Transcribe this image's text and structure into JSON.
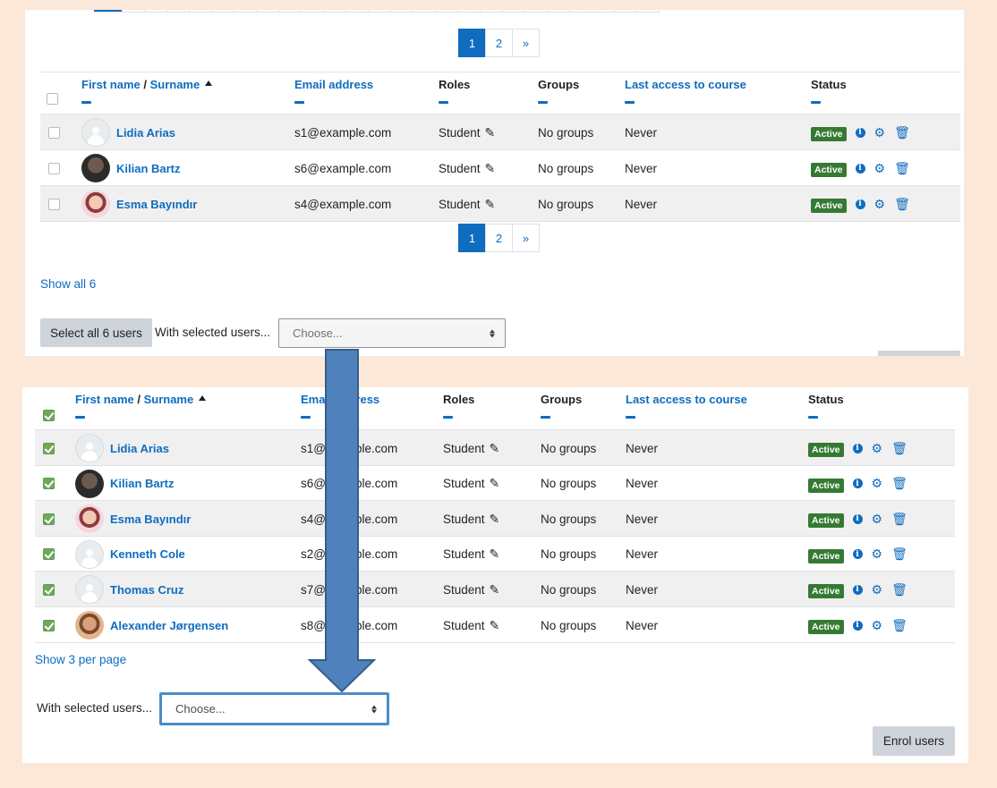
{
  "pagination": {
    "pages": [
      "1",
      "2"
    ],
    "next": "»",
    "current": "1"
  },
  "columns": {
    "first_name": "First name",
    "separator": " / ",
    "surname": "Surname",
    "email": "Email address",
    "roles": "Roles",
    "groups": "Groups",
    "last_access": "Last access to course",
    "status": "Status"
  },
  "top_panel": {
    "users": [
      {
        "name": "Lidia Arias",
        "email": "s1@example.com",
        "role": "Student",
        "groups": "No groups",
        "last_access": "Never",
        "status": "Active",
        "avatar": "default"
      },
      {
        "name": "Kilian Bartz",
        "email": "s6@example.com",
        "role": "Student",
        "groups": "No groups",
        "last_access": "Never",
        "status": "Active",
        "avatar": "dark"
      },
      {
        "name": "Esma Bayındır",
        "email": "s4@example.com",
        "role": "Student",
        "groups": "No groups",
        "last_access": "Never",
        "status": "Active",
        "avatar": "pink"
      }
    ],
    "show_all_link": "Show all 6",
    "select_all_button": "Select all 6 users",
    "with_selected_label": "With selected users...",
    "choose_placeholder": "Choose..."
  },
  "bottom_panel": {
    "users": [
      {
        "name": "Lidia Arias",
        "email": "s1@example.com",
        "role": "Student",
        "groups": "No groups",
        "last_access": "Never",
        "status": "Active",
        "avatar": "default"
      },
      {
        "name": "Kilian Bartz",
        "email": "s6@example.com",
        "role": "Student",
        "groups": "No groups",
        "last_access": "Never",
        "status": "Active",
        "avatar": "dark"
      },
      {
        "name": "Esma Bayındır",
        "email": "s4@example.com",
        "role": "Student",
        "groups": "No groups",
        "last_access": "Never",
        "status": "Active",
        "avatar": "pink"
      },
      {
        "name": "Kenneth Cole",
        "email": "s2@example.com",
        "role": "Student",
        "groups": "No groups",
        "last_access": "Never",
        "status": "Active",
        "avatar": "default"
      },
      {
        "name": "Thomas Cruz",
        "email": "s7@example.com",
        "role": "Student",
        "groups": "No groups",
        "last_access": "Never",
        "status": "Active",
        "avatar": "default"
      },
      {
        "name": "Alexander Jørgensen",
        "email": "s8@example.com",
        "role": "Student",
        "groups": "No groups",
        "last_access": "Never",
        "status": "Active",
        "avatar": "beard"
      }
    ],
    "show_per_page_link": "Show 3 per page",
    "with_selected_label": "With selected users...",
    "choose_placeholder": "Choose...",
    "enrol_button": "Enrol users"
  },
  "colors": {
    "link": "#0f6cbf",
    "active_badge": "#357a32",
    "arrow_fill": "#4f81bd",
    "arrow_stroke": "#385d8a",
    "page_bg": "#fce8d9"
  },
  "icons": [
    "pencil-icon",
    "info-icon",
    "gear-icon",
    "trash-icon",
    "sort-ascending-icon"
  ]
}
